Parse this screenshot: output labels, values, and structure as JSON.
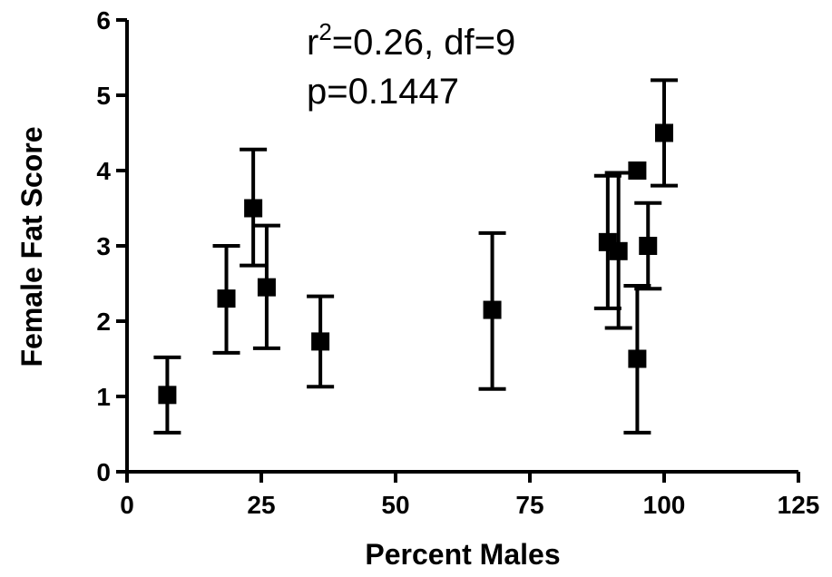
{
  "chart_data": {
    "type": "scatter",
    "title": "",
    "xlabel": "Percent Males",
    "ylabel": "Female Fat Score",
    "xlim": [
      0,
      125
    ],
    "ylim": [
      0,
      6
    ],
    "x_ticks": [
      0,
      25,
      50,
      75,
      100,
      125
    ],
    "y_ticks": [
      0,
      1,
      2,
      3,
      4,
      5,
      6
    ],
    "grid": false,
    "annotation": {
      "r_prefix": "r",
      "r_sup": "2",
      "r_rest": "=0.26, df=9",
      "p_line": "p=0.1447"
    },
    "points": [
      {
        "x": 7.5,
        "y": 1.02,
        "err_low": 0.52,
        "err_high": 1.52
      },
      {
        "x": 18.5,
        "y": 2.3,
        "err_low": 1.58,
        "err_high": 3.0
      },
      {
        "x": 23.5,
        "y": 3.5,
        "err_low": 2.74,
        "err_high": 4.28
      },
      {
        "x": 26.0,
        "y": 2.45,
        "err_low": 1.64,
        "err_high": 3.27
      },
      {
        "x": 36.0,
        "y": 1.73,
        "err_low": 1.13,
        "err_high": 2.33
      },
      {
        "x": 68.0,
        "y": 2.15,
        "err_low": 1.1,
        "err_high": 3.17
      },
      {
        "x": 89.5,
        "y": 3.05,
        "err_low": 2.17,
        "err_high": 3.93
      },
      {
        "x": 91.5,
        "y": 2.93,
        "err_low": 1.91,
        "err_high": 3.97
      },
      {
        "x": 95.0,
        "y": 4.0,
        "err_low": 4.0,
        "err_high": 4.0
      },
      {
        "x": 95.0,
        "y": 1.5,
        "err_low": 0.52,
        "err_high": 2.47
      },
      {
        "x": 97.0,
        "y": 3.0,
        "err_low": 2.43,
        "err_high": 3.57
      },
      {
        "x": 100.0,
        "y": 4.5,
        "err_low": 3.8,
        "err_high": 5.2
      }
    ]
  }
}
